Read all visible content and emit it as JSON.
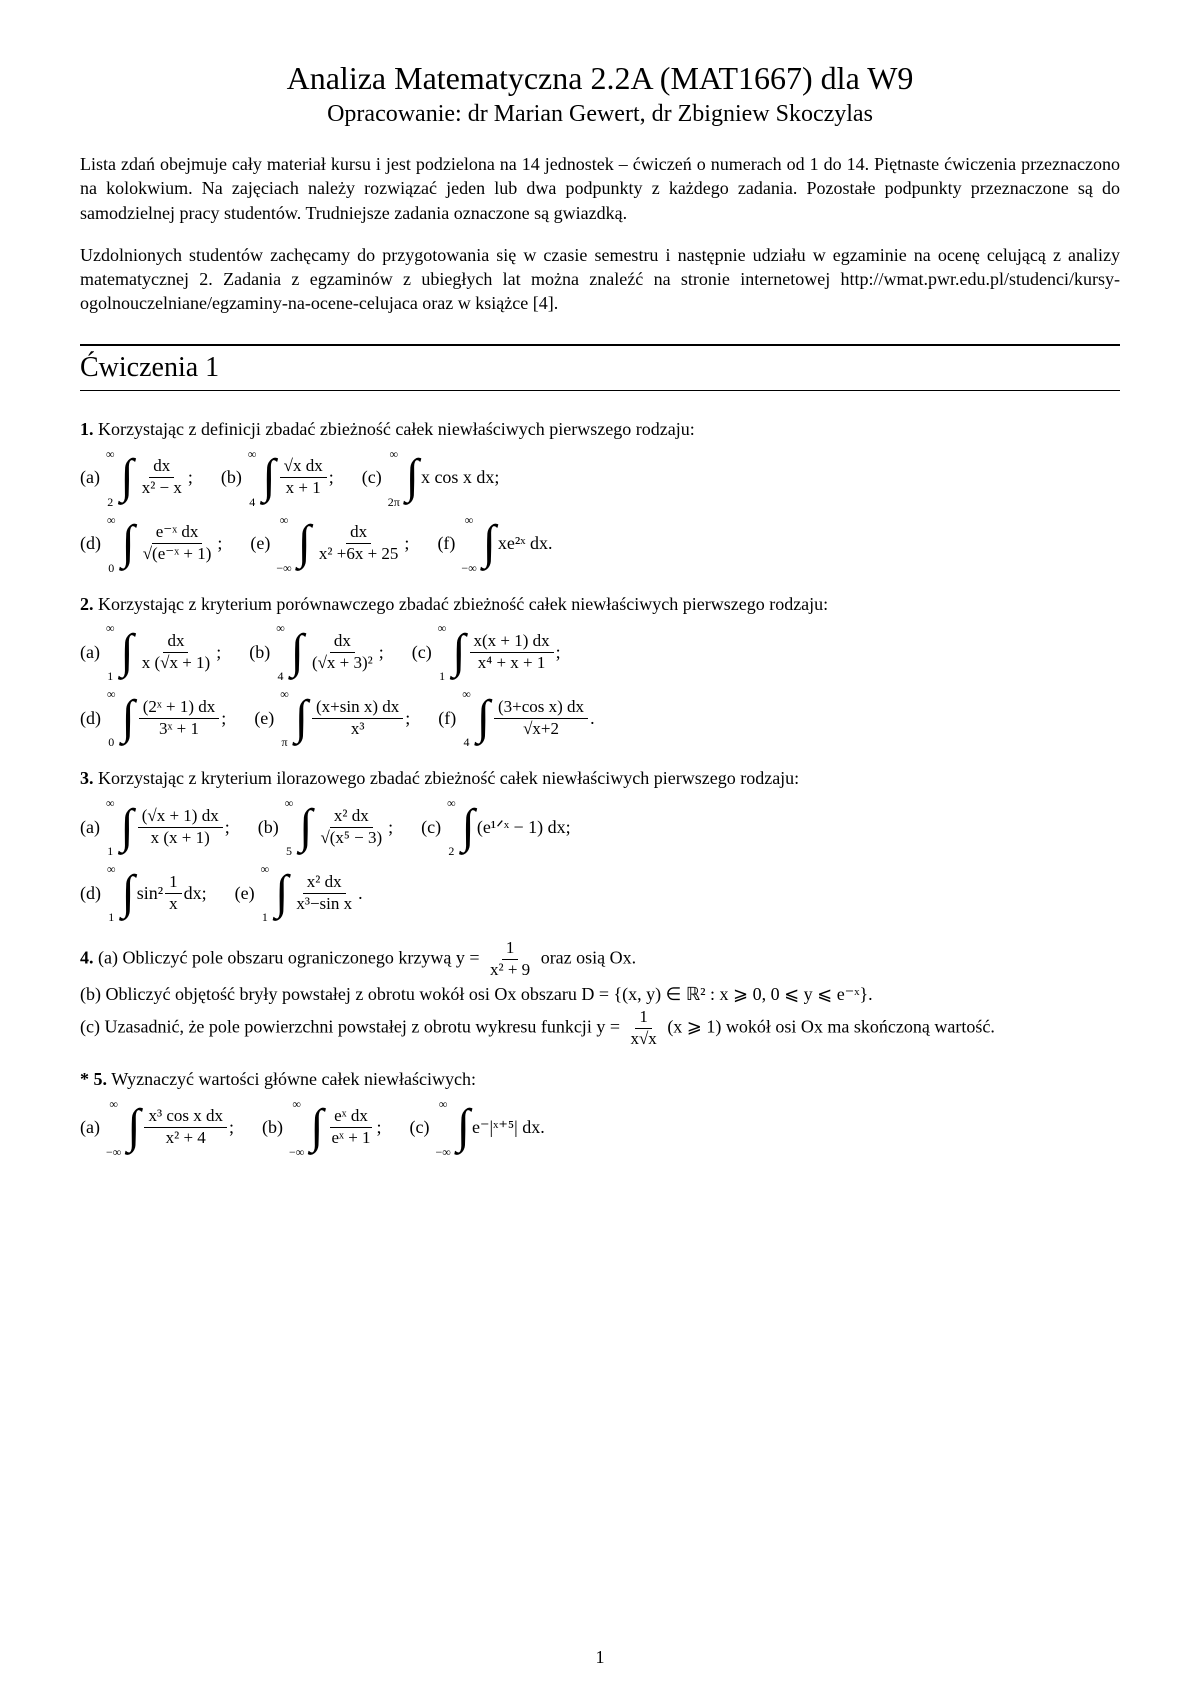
{
  "title": "Analiza Matematyczna 2.2A (MAT1667) dla W9",
  "subtitle": "Opracowanie: dr Marian Gewert, dr Zbigniew Skoczylas",
  "intro1": "Lista zdań obejmuje cały materiał kursu i jest podzielona na 14 jednostek – ćwiczeń o numerach od 1 do 14. Piętnaste ćwiczenia przeznaczono na kolokwium. Na zajęciach należy rozwiązać jeden lub dwa podpunkty z każdego zadania. Pozostałe podpunkty przeznaczone są do samodzielnej pracy studentów. Trudniejsze zadania oznaczone są gwiazdką.",
  "intro2": "Uzdolnionych studentów zachęcamy do przygotowania się w czasie semestru i następnie udziału w egzaminie na ocenę celującą z analizy matematycznej 2. Zadania z egzaminów z ubiegłych lat można znaleźć na stronie internetowej http://wmat.pwr.edu.pl/studenci/kursy-ogolnouczelniane/egzaminy-na-ocene-celujaca oraz w książce [4].",
  "sectionTitle": "Ćwiczenia 1",
  "p1": {
    "prompt": "Korzystając z definicji zbadać zbieżność całek niewłaściwych pierwszego rodzaju:",
    "a": {
      "ll": "2",
      "ul": "∞",
      "num": "dx",
      "den": "x² − x"
    },
    "b": {
      "ll": "4",
      "ul": "∞",
      "num": "√x dx",
      "den": "x + 1"
    },
    "c": {
      "ll": "2π",
      "ul": "∞",
      "expr": "x cos x dx;"
    },
    "d": {
      "ll": "0",
      "ul": "∞",
      "num": "e⁻ˣ dx",
      "den": "√(e⁻ˣ + 1)"
    },
    "e": {
      "ll": "−∞",
      "ul": "∞",
      "num": "dx",
      "den": "x² +6x + 25"
    },
    "f": {
      "ll": "−∞",
      "ul": "∞",
      "expr": "xe²ˣ dx."
    }
  },
  "p2": {
    "prompt": "Korzystając z kryterium porównawczego zbadać zbieżność całek niewłaściwych pierwszego rodzaju:",
    "a": {
      "ll": "1",
      "ul": "∞",
      "num": "dx",
      "den": "x (√x + 1)"
    },
    "b": {
      "ll": "4",
      "ul": "∞",
      "num": "dx",
      "den": "(√x + 3)²"
    },
    "c": {
      "ll": "1",
      "ul": "∞",
      "num": "x(x + 1) dx",
      "den": "x⁴ + x + 1"
    },
    "d": {
      "ll": "0",
      "ul": "∞",
      "num": "(2ˣ + 1) dx",
      "den": "3ˣ + 1"
    },
    "e": {
      "ll": "π",
      "ul": "∞",
      "num": "(x+sin x) dx",
      "den": "x³"
    },
    "f": {
      "ll": "4",
      "ul": "∞",
      "num": "(3+cos x) dx",
      "den": "√x+2"
    }
  },
  "p3": {
    "prompt": "Korzystając z kryterium ilorazowego zbadać zbieżność całek niewłaściwych pierwszego rodzaju:",
    "a": {
      "ll": "1",
      "ul": "∞",
      "num": "(√x + 1) dx",
      "den": "x (x + 1)"
    },
    "b": {
      "ll": "5",
      "ul": "∞",
      "num": "x² dx",
      "den": "√(x⁵ − 3)"
    },
    "c": {
      "ll": "2",
      "ul": "∞",
      "expr": "(e¹ᐟˣ − 1) dx;"
    },
    "d": {
      "ll": "1",
      "ul": "∞",
      "expr_pre": "sin²",
      "num": "1",
      "den": "x",
      "expr_post": "dx;"
    },
    "e": {
      "ll": "1",
      "ul": "∞",
      "num": "x² dx",
      "den": "x³−sin x"
    }
  },
  "p4": {
    "a_pre": "(a) Obliczyć pole obszaru ograniczonego krzywą y = ",
    "a_num": "1",
    "a_den": "x² + 9",
    "a_post": " oraz osią Ox.",
    "b": "(b) Obliczyć objętość bryły powstałej z obrotu wokół osi Ox obszaru D = {(x, y) ∈ ℝ² : x ⩾ 0, 0 ⩽ y ⩽ e⁻ˣ}.",
    "c_pre": "(c) Uzasadnić, że pole powierzchni powstałej z obrotu wykresu funkcji y = ",
    "c_num": "1",
    "c_den": "x√x",
    "c_post": " (x ⩾ 1) wokół osi Ox ma skończoną wartość."
  },
  "p5": {
    "prompt": "Wyznaczyć wartości główne całek niewłaściwych:",
    "a": {
      "ll": "−∞",
      "ul": "∞",
      "num": "x³ cos x dx",
      "den": "x² + 4"
    },
    "b": {
      "ll": "−∞",
      "ul": "∞",
      "num": "eˣ dx",
      "den": "eˣ + 1"
    },
    "c": {
      "ll": "−∞",
      "ul": "∞",
      "expr": "e⁻|ˣ⁺⁵| dx."
    }
  },
  "labels": {
    "n1": "1.",
    "n2": "2.",
    "n3": "3.",
    "n4": "4.",
    "n5": "* 5.",
    "a": "(a)",
    "b": "(b)",
    "c": "(c)",
    "d": "(d)",
    "e": "(e)",
    "f": "(f)"
  },
  "pageNumber": "1"
}
